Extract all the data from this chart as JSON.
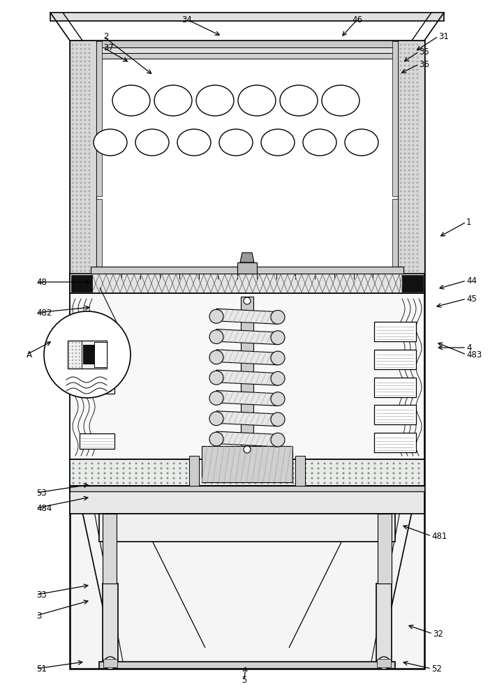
{
  "fig_width": 7.12,
  "fig_height": 10.0,
  "bg_color": "#ffffff",
  "lc": "#000000",
  "annotations": [
    [
      "1",
      668,
      318,
      628,
      340,
      "left"
    ],
    [
      "2",
      148,
      52,
      220,
      108,
      "left"
    ],
    [
      "3",
      52,
      882,
      130,
      860,
      "left"
    ],
    [
      "4",
      668,
      498,
      624,
      498,
      "left"
    ],
    [
      "5",
      350,
      975,
      352,
      952,
      "center"
    ],
    [
      "31",
      628,
      52,
      594,
      74,
      "left"
    ],
    [
      "32",
      620,
      908,
      582,
      895,
      "left"
    ],
    [
      "33",
      52,
      852,
      130,
      838,
      "left"
    ],
    [
      "34",
      268,
      28,
      318,
      52,
      "center"
    ],
    [
      "35",
      600,
      74,
      576,
      90,
      "left"
    ],
    [
      "36",
      600,
      92,
      572,
      106,
      "left"
    ],
    [
      "37",
      148,
      68,
      186,
      90,
      "left"
    ],
    [
      "44",
      668,
      402,
      626,
      414,
      "left"
    ],
    [
      "45",
      668,
      428,
      622,
      440,
      "left"
    ],
    [
      "46",
      512,
      28,
      488,
      54,
      "center"
    ],
    [
      "48",
      52,
      404,
      132,
      404,
      "left"
    ],
    [
      "481",
      618,
      768,
      574,
      752,
      "left"
    ],
    [
      "482",
      52,
      448,
      132,
      440,
      "left"
    ],
    [
      "483",
      668,
      508,
      624,
      490,
      "left"
    ],
    [
      "484",
      52,
      728,
      130,
      712,
      "left"
    ],
    [
      "51",
      52,
      958,
      122,
      948,
      "left"
    ],
    [
      "52",
      618,
      958,
      574,
      948,
      "left"
    ],
    [
      "53",
      52,
      706,
      130,
      694,
      "left"
    ],
    [
      "A",
      38,
      508,
      76,
      488,
      "left"
    ]
  ]
}
